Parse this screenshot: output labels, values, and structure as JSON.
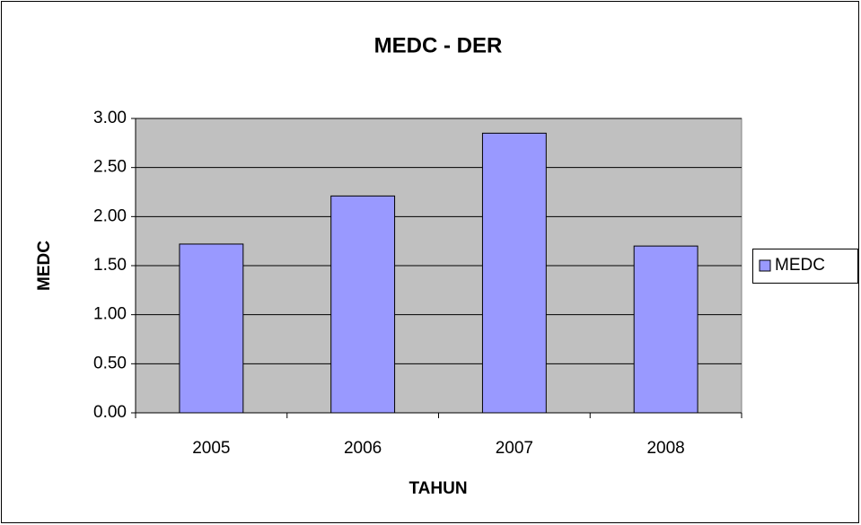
{
  "chart_data": {
    "type": "bar",
    "title": "MEDC - DER",
    "x_label": "TAHUN",
    "y_label": "MEDC",
    "categories": [
      "2005",
      "2006",
      "2007",
      "2008"
    ],
    "series": [
      {
        "name": "MEDC",
        "color": "#9999ff",
        "values": [
          1.72,
          2.21,
          2.85,
          1.7
        ]
      }
    ],
    "ylim": [
      0,
      3
    ],
    "yticks": [
      {
        "value": 0,
        "label": "0.00"
      },
      {
        "value": 0.5,
        "label": "0.50"
      },
      {
        "value": 1,
        "label": "1.00"
      },
      {
        "value": 1.5,
        "label": "1.50"
      },
      {
        "value": 2,
        "label": "2.00"
      },
      {
        "value": 2.5,
        "label": "2.50"
      },
      {
        "value": 3,
        "label": "3.00"
      }
    ],
    "grid": true,
    "legend": "right"
  }
}
